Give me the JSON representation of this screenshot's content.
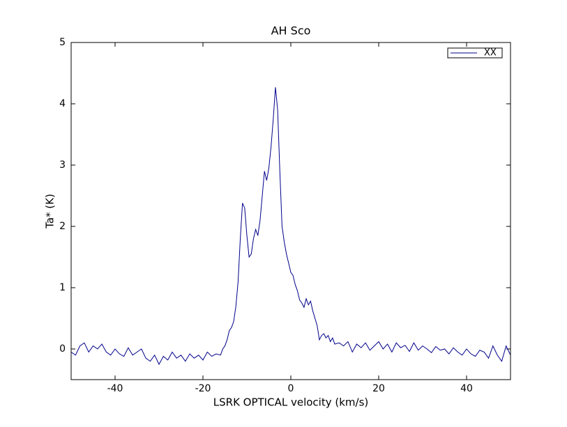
{
  "chart_data": {
    "type": "line",
    "title": "AH Sco",
    "x_label": "LSRK OPTICAL velocity (km/s)",
    "y_label": "Ta* (K)",
    "x": [
      -50,
      -49,
      -48,
      -47,
      -46,
      -45,
      -44,
      -43,
      -42,
      -41,
      -40,
      -39,
      -38,
      -37,
      -36,
      -35,
      -34,
      -33,
      -32,
      -31,
      -30,
      -29,
      -28,
      -27,
      -26,
      -25,
      -24,
      -23,
      -22,
      -21,
      -20,
      -19,
      -18,
      -17,
      -16,
      -15.5,
      -15,
      -14.5,
      -14,
      -13.5,
      -13,
      -12.5,
      -12,
      -11.5,
      -11,
      -10.5,
      -10,
      -9.5,
      -9,
      -8.5,
      -8,
      -7.5,
      -7,
      -6.5,
      -6,
      -5.5,
      -5,
      -4.5,
      -4,
      -3.5,
      -3,
      -2.5,
      -2,
      -1.5,
      -1,
      -0.5,
      0,
      0.5,
      1,
      1.5,
      2,
      2.5,
      3,
      3.5,
      4,
      4.5,
      5,
      5.5,
      6,
      6.5,
      7,
      7.5,
      8,
      8.5,
      9,
      9.5,
      10,
      11,
      12,
      13,
      14,
      15,
      16,
      17,
      18,
      19,
      20,
      21,
      22,
      23,
      24,
      25,
      26,
      27,
      28,
      29,
      30,
      31,
      32,
      33,
      34,
      35,
      36,
      37,
      38,
      39,
      40,
      41,
      42,
      43,
      44,
      45,
      46,
      47,
      48,
      49,
      50
    ],
    "series": [
      {
        "name": "XX",
        "color": "#00008b",
        "values": [
          -0.05,
          -0.1,
          0.05,
          0.1,
          -0.05,
          0.05,
          0.0,
          0.08,
          -0.05,
          -0.1,
          0.0,
          -0.08,
          -0.12,
          0.02,
          -0.1,
          -0.05,
          0.0,
          -0.15,
          -0.2,
          -0.1,
          -0.25,
          -0.12,
          -0.18,
          -0.05,
          -0.15,
          -0.1,
          -0.2,
          -0.08,
          -0.15,
          -0.1,
          -0.18,
          -0.05,
          -0.12,
          -0.08,
          -0.1,
          0.0,
          0.05,
          0.15,
          0.3,
          0.35,
          0.45,
          0.7,
          1.1,
          1.8,
          2.38,
          2.3,
          1.85,
          1.5,
          1.55,
          1.8,
          1.95,
          1.85,
          2.1,
          2.5,
          2.9,
          2.75,
          2.95,
          3.3,
          3.75,
          4.27,
          3.9,
          2.9,
          2.0,
          1.75,
          1.55,
          1.4,
          1.25,
          1.2,
          1.05,
          0.95,
          0.8,
          0.75,
          0.68,
          0.82,
          0.72,
          0.78,
          0.62,
          0.5,
          0.38,
          0.15,
          0.22,
          0.25,
          0.18,
          0.22,
          0.12,
          0.18,
          0.08,
          0.1,
          0.05,
          0.12,
          -0.05,
          0.08,
          0.02,
          0.1,
          -0.02,
          0.05,
          0.12,
          0.0,
          0.08,
          -0.05,
          0.1,
          0.02,
          0.06,
          -0.04,
          0.1,
          -0.02,
          0.05,
          0.0,
          -0.06,
          0.04,
          -0.02,
          0.0,
          -0.08,
          0.02,
          -0.05,
          -0.1,
          0.0,
          -0.08,
          -0.12,
          -0.02,
          -0.05,
          -0.15,
          0.05,
          -0.1,
          -0.2,
          0.05,
          -0.1
        ]
      }
    ],
    "xlim": [
      -50,
      50
    ],
    "xticks": [
      -40,
      -20,
      0,
      20,
      40
    ],
    "ylim": [
      -0.5,
      5
    ],
    "yticks": [
      0,
      1,
      2,
      3,
      4,
      5
    ],
    "legend": "upper right",
    "grid": false
  }
}
